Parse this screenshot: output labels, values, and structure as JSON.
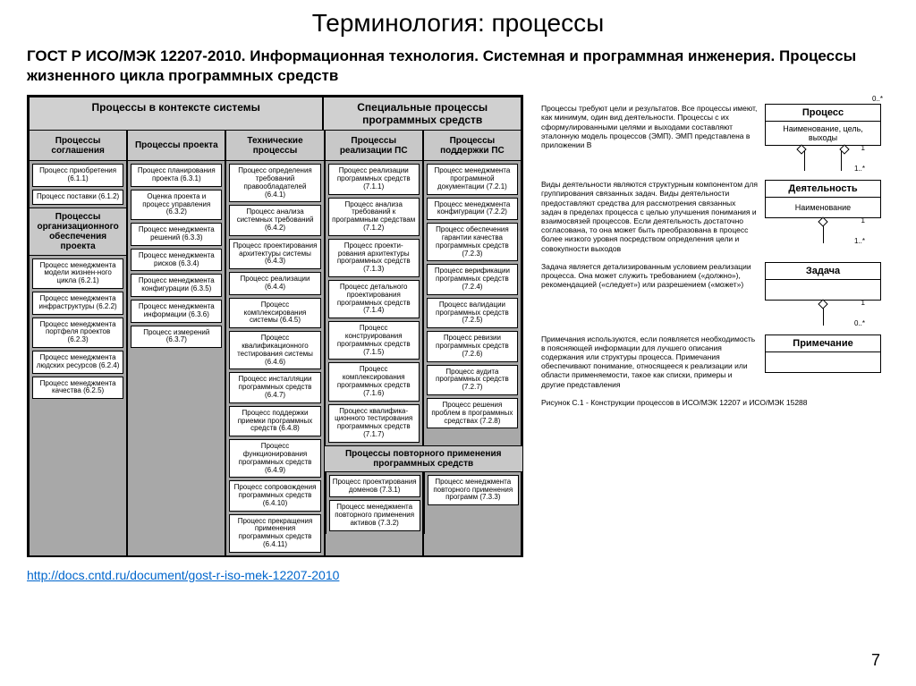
{
  "title": "Терминология: процессы",
  "subtitle": "ГОСТ Р ИСО/МЭК 12207-2010. Информационная технология. Системная и программная инженерия. Процессы жизненного цикла программных средств",
  "link": "http://docs.cntd.ru/document/gost-r-iso-mek-12207-2010",
  "pagenum": "7",
  "table": {
    "hdr_left": "Процессы в контексте системы",
    "hdr_right": "Специальные процессы программных средств",
    "cols": {
      "c1": "Процессы соглашения",
      "c2": "Процессы проекта",
      "c3": "Технические процессы",
      "c4": "Процессы реализации ПС",
      "c5": "Процессы поддержки ПС"
    },
    "sub1": "Процессы организационного обеспечения проекта",
    "bottom_hdr": "Процессы повторного применения программных средств",
    "col1a": [
      "Процесс приобретения (6.1.1)",
      "Процесс поставки (6.1.2)"
    ],
    "col1b": [
      "Процесс менеджмента модели жизнен-ного цикла (6.2.1)",
      "Процесс менеджмента инфраструктуры (6.2.2)",
      "Процесс менеджмента портфеля проектов (6.2.3)",
      "Процесс менеджмента людских ресурсов (6.2.4)",
      "Процесс менеджмента качества (6.2.5)"
    ],
    "col2": [
      "Процесс планирования проекта (6.3.1)",
      "Оценка проекта и процесс управления (6.3.2)",
      "Процесс менеджмента решений (6.3.3)",
      "Процесс менеджмента рисков (6.3.4)",
      "Процесс менеджмента конфигурации (6.3.5)",
      "Процесс менеджмента информации (6.3.6)",
      "Процесс измерений (6.3.7)"
    ],
    "col3": [
      "Процесс определения требований правообладателей (6.4.1)",
      "Процесс анализа системных требований (6.4.2)",
      "Процесс проектирования архитектуры системы (6.4.3)",
      "Процесс реализации (6.4.4)",
      "Процесс комплексирования системы (6.4.5)",
      "Процесс квалификационного тестирования системы (6.4.6)",
      "Процесс инсталляции программных средств (6.4.7)",
      "Процесс поддержки приемки программных средств (6.4.8)",
      "Процесс функционирования программных средств (6.4.9)",
      "Процесс сопровождения программных средств (6.4.10)",
      "Процесс прекращения применения программных средств (6.4.11)"
    ],
    "col4": [
      "Процесс реализации программных средств (7.1.1)",
      "Процесс анализа требований к программным средствам (7.1.2)",
      "Процесс проекти-рования архитектуры программных средств (7.1.3)",
      "Процесс детального проектирования программных средств (7.1.4)",
      "Процесс конструирования программных средств (7.1.5)",
      "Процесс комплексирования программных средств (7.1.6)",
      "Процесс квалифика-ционного тестирования программных средств (7.1.7)"
    ],
    "col5": [
      "Процесс менеджмента программной документации (7.2.1)",
      "Процесс менеджмента конфигурации (7.2.2)",
      "Процесс обеспечения гарантии качества программных средств (7.2.3)",
      "Процесс верификации программных средств (7.2.4)",
      "Процесс валидации программных средств (7.2.5)",
      "Процесс ревизии программных средств (7.2.6)",
      "Процесс аудита программных средств (7.2.7)",
      "Процесс решения проблем в программных средствах (7.2.8)"
    ],
    "bottom": [
      "Процесс проектирования доменов (7.3.1)",
      "Процесс менеджмента повторного применения активов (7.3.2)",
      "Процесс менеджмента повторного применения программ (7.3.3)"
    ]
  },
  "right": {
    "desc1": "Процессы требуют цели и результатов. Все процессы имеют, как минимум, один вид деятельности. Процессы с их сформулированными целями и выходами составляют эталонную модель процессов (ЭМП). ЭМП представлена в приложении B",
    "desc2": "Виды деятельности являются структурным компонентом для группирования связанных задач. Виды деятельности предоставляют средства для рассмотрения связанных задач в пределах процесса с целью улучшения понимания и взаимосвязей процессов. Если деятельность достаточно согласована, то она может быть преобразована в процесс более низкого уровня посредством определения цели и совокупности выходов",
    "desc3": "Задача является детализированным условием реализации процесса. Она может служить требованием («должно»), рекомендацией («следует») или разрешением («может»)",
    "desc4": "Примечания используются, если появляется необходимость в поясняющей информации для лучшего описания содержания или структуры процесса. Примечания обеспечивают понимание, относящееся к реализации или области применяемости, такое как списки, примеры и другие представления",
    "caption": "Рисунок C.1 - Конструкции процессов в ИСО/МЭК 12207 и ИСО/МЭК 15288",
    "uml": {
      "b1name": "Процесс",
      "b1attr": "Наименование, цель, выходы",
      "b2name": "Деятельность",
      "b2attr": "Наименование",
      "b3name": "Задача",
      "b3attr": "",
      "b4name": "Примечание",
      "b4attr": "",
      "m1": "0..*",
      "m2": "1",
      "m3": "1..*",
      "m4": "1",
      "m5": "1..*",
      "m6": "1",
      "m7": "0..*"
    }
  }
}
